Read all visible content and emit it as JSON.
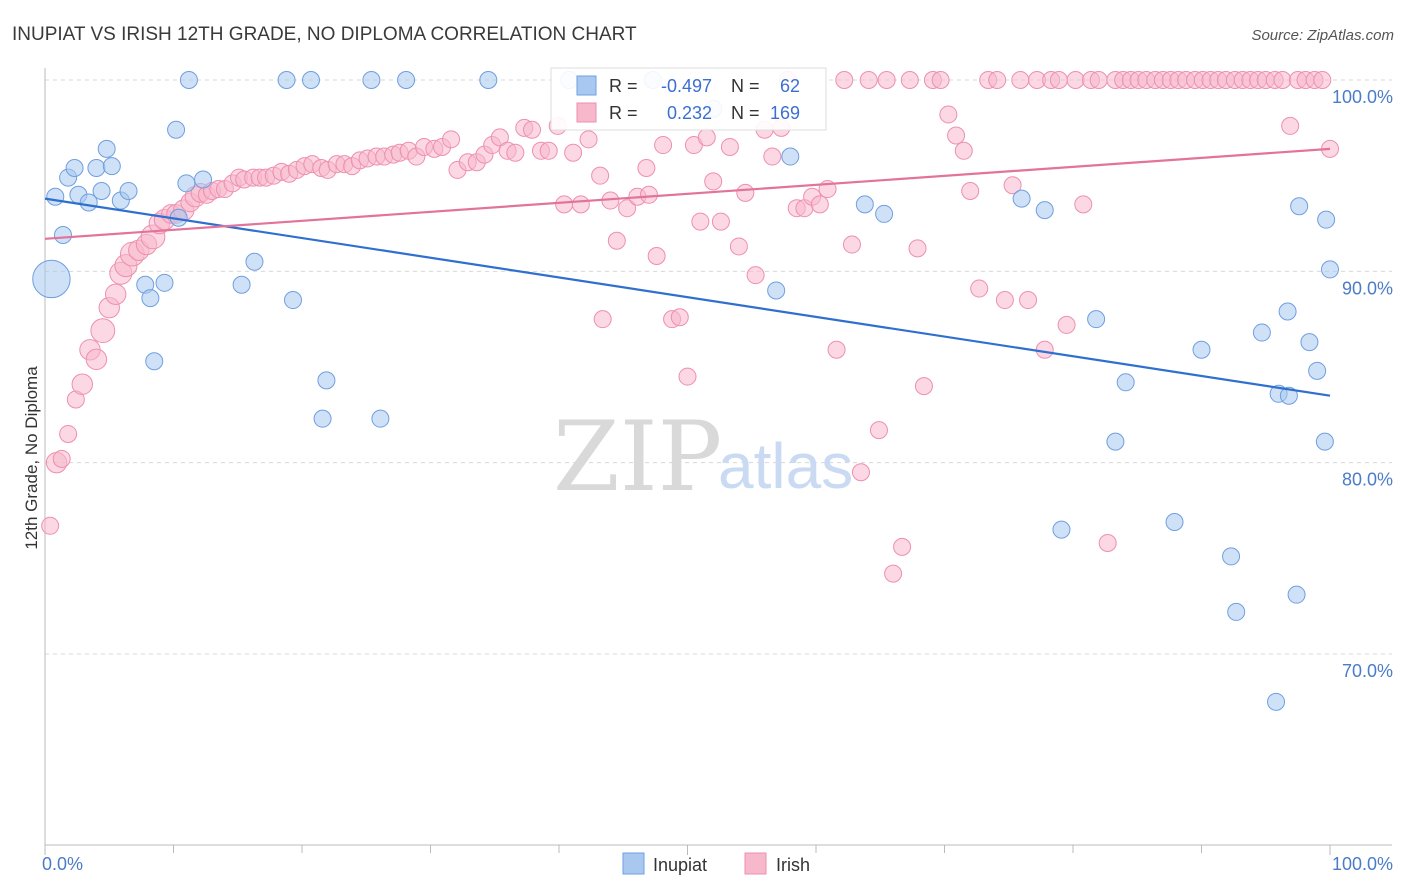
{
  "chart_data": {
    "type": "scatter",
    "title": "INUPIAT VS IRISH 12TH GRADE, NO DIPLOMA CORRELATION CHART",
    "source": "Source: ZipAtlas.com",
    "ylabel": "12th Grade, No Diploma",
    "xlim": [
      0,
      100
    ],
    "ylim": [
      60,
      104
    ],
    "x_tick_labels": [
      "0.0%",
      "100.0%"
    ],
    "y_ticks": [
      {
        "value": 100,
        "label": "100.0%"
      },
      {
        "value": 90,
        "label": "90.0%"
      },
      {
        "value": 80,
        "label": "80.0%"
      },
      {
        "value": 70,
        "label": "70.0%"
      }
    ],
    "grid": "horizontal-dashed",
    "legend": {
      "position": "bottom-center"
    },
    "stats_box": {
      "position": "top-center",
      "rows": [
        {
          "r_label": "R =",
          "r_value": "-0.497",
          "n_label": "N =",
          "n_value": "62"
        },
        {
          "r_label": "R =",
          "r_value": "0.232",
          "n_label": "N =",
          "n_value": "169"
        }
      ]
    },
    "watermark": {
      "part1": "ZIP",
      "part2": "atlas"
    },
    "series": [
      {
        "name": "Inupiat",
        "color": "#a8c8f0",
        "stroke": "#6f9fe0",
        "trend_color": "#2f6fd0",
        "trend": [
          [
            0,
            93.8
          ],
          [
            100,
            83.5
          ]
        ],
        "points": [
          [
            0.5,
            89.6,
            2.2
          ],
          [
            0.8,
            93.9,
            1
          ],
          [
            1.4,
            91.9,
            1
          ],
          [
            1.8,
            94.9,
            1
          ],
          [
            2.3,
            95.4,
            1
          ],
          [
            2.6,
            94.0,
            1
          ],
          [
            3.4,
            93.6,
            1
          ],
          [
            4.0,
            95.4,
            1
          ],
          [
            4.4,
            94.2,
            1
          ],
          [
            4.8,
            96.4,
            1
          ],
          [
            5.2,
            95.5,
            1
          ],
          [
            5.9,
            93.7,
            1
          ],
          [
            6.5,
            94.2,
            1
          ],
          [
            7.8,
            89.3,
            1
          ],
          [
            8.2,
            88.6,
            1
          ],
          [
            8.5,
            85.3,
            1
          ],
          [
            9.3,
            89.4,
            1
          ],
          [
            10.2,
            97.4,
            1
          ],
          [
            10.4,
            92.8,
            1
          ],
          [
            11.0,
            94.6,
            1
          ],
          [
            11.2,
            100,
            1
          ],
          [
            12.3,
            94.8,
            1
          ],
          [
            15.3,
            89.3,
            1
          ],
          [
            16.3,
            90.5,
            1
          ],
          [
            18.8,
            100,
            1
          ],
          [
            19.3,
            88.5,
            1
          ],
          [
            20.7,
            100,
            1
          ],
          [
            21.6,
            82.3,
            1
          ],
          [
            21.9,
            84.3,
            1
          ],
          [
            25.4,
            100,
            1
          ],
          [
            26.1,
            82.3,
            1
          ],
          [
            28.1,
            100,
            1
          ],
          [
            34.5,
            100,
            1
          ],
          [
            40.8,
            100,
            1
          ],
          [
            47.3,
            100,
            1
          ],
          [
            52.0,
            98.5,
            1
          ],
          [
            56.9,
            89.0,
            1
          ],
          [
            58.0,
            96.0,
            1
          ],
          [
            63.8,
            93.5,
            1
          ],
          [
            65.3,
            93.0,
            1
          ],
          [
            76.0,
            93.8,
            1
          ],
          [
            77.8,
            93.2,
            1
          ],
          [
            79.1,
            76.5,
            1
          ],
          [
            81.8,
            87.5,
            1
          ],
          [
            83.3,
            81.1,
            1
          ],
          [
            84.1,
            84.2,
            1
          ],
          [
            87.9,
            76.9,
            1
          ],
          [
            90.0,
            85.9,
            1
          ],
          [
            92.3,
            75.1,
            1
          ],
          [
            92.7,
            72.2,
            1
          ],
          [
            94.7,
            86.8,
            1
          ],
          [
            95.8,
            67.5,
            1
          ],
          [
            96.0,
            83.6,
            1
          ],
          [
            96.7,
            87.9,
            1
          ],
          [
            96.8,
            83.5,
            1
          ],
          [
            97.4,
            73.1,
            1
          ],
          [
            97.6,
            93.4,
            1
          ],
          [
            98.4,
            86.3,
            1
          ],
          [
            99.0,
            84.8,
            1
          ],
          [
            99.6,
            81.1,
            1
          ],
          [
            99.7,
            92.7,
            1
          ],
          [
            100.0,
            90.1,
            1
          ]
        ]
      },
      {
        "name": "Irish",
        "color": "#f7b8cc",
        "stroke": "#ee8fb0",
        "trend_color": "#e2739a",
        "trend": [
          [
            0,
            91.7
          ],
          [
            100,
            96.4
          ]
        ],
        "points": [
          [
            0.4,
            76.7,
            1
          ],
          [
            0.9,
            80.0,
            1.2
          ],
          [
            1.3,
            80.2,
            1
          ],
          [
            1.8,
            81.5,
            1
          ],
          [
            2.4,
            83.3,
            1
          ],
          [
            2.9,
            84.1,
            1.2
          ],
          [
            3.5,
            85.9,
            1.2
          ],
          [
            4.0,
            85.4,
            1.2
          ],
          [
            4.5,
            86.9,
            1.4
          ],
          [
            5.0,
            88.1,
            1.2
          ],
          [
            5.5,
            88.8,
            1.2
          ],
          [
            5.9,
            89.9,
            1.3
          ],
          [
            6.3,
            90.3,
            1.3
          ],
          [
            6.8,
            90.9,
            1.4
          ],
          [
            7.3,
            91.1,
            1.2
          ],
          [
            7.9,
            91.4,
            1.2
          ],
          [
            8.4,
            91.8,
            1.4
          ],
          [
            8.9,
            92.5,
            1.2
          ],
          [
            9.3,
            92.7,
            1.2
          ],
          [
            9.8,
            93.0,
            1.1
          ],
          [
            10.2,
            93.0,
            1.1
          ],
          [
            10.8,
            93.2,
            1.2
          ],
          [
            11.3,
            93.6,
            1.1
          ],
          [
            11.7,
            93.9,
            1.2
          ],
          [
            12.1,
            94.1,
            1.1
          ],
          [
            12.6,
            94.0,
            1
          ],
          [
            13.0,
            94.2,
            1
          ],
          [
            13.5,
            94.3,
            1
          ],
          [
            14.0,
            94.3,
            1
          ],
          [
            14.6,
            94.6,
            1
          ],
          [
            15.1,
            94.9,
            1
          ],
          [
            15.5,
            94.8,
            1
          ],
          [
            16.2,
            94.9,
            1
          ],
          [
            16.7,
            94.9,
            1
          ],
          [
            17.2,
            94.9,
            1
          ],
          [
            17.8,
            95.0,
            1
          ],
          [
            18.4,
            95.2,
            1
          ],
          [
            19.0,
            95.1,
            1
          ],
          [
            19.6,
            95.3,
            1
          ],
          [
            20.2,
            95.5,
            1
          ],
          [
            20.8,
            95.6,
            1
          ],
          [
            21.5,
            95.4,
            1
          ],
          [
            22.0,
            95.3,
            1
          ],
          [
            22.7,
            95.6,
            1
          ],
          [
            23.3,
            95.6,
            1
          ],
          [
            23.9,
            95.5,
            1
          ],
          [
            24.5,
            95.8,
            1
          ],
          [
            25.1,
            95.9,
            1
          ],
          [
            25.8,
            96.0,
            1
          ],
          [
            26.4,
            96.0,
            1
          ],
          [
            27.1,
            96.1,
            1
          ],
          [
            27.6,
            96.2,
            1
          ],
          [
            28.3,
            96.3,
            1
          ],
          [
            28.9,
            96.0,
            1
          ],
          [
            29.5,
            96.5,
            1
          ],
          [
            30.3,
            96.4,
            1
          ],
          [
            30.9,
            96.5,
            1
          ],
          [
            31.6,
            96.9,
            1
          ],
          [
            32.1,
            95.3,
            1
          ],
          [
            32.9,
            95.7,
            1
          ],
          [
            33.6,
            95.7,
            1
          ],
          [
            34.2,
            96.1,
            1
          ],
          [
            34.8,
            96.6,
            1
          ],
          [
            35.4,
            97.0,
            1
          ],
          [
            36.0,
            96.3,
            1
          ],
          [
            36.6,
            96.2,
            1
          ],
          [
            37.3,
            97.5,
            1
          ],
          [
            37.9,
            97.4,
            1
          ],
          [
            38.6,
            96.3,
            1
          ],
          [
            39.2,
            96.3,
            1
          ],
          [
            39.9,
            97.6,
            1
          ],
          [
            40.4,
            93.5,
            1
          ],
          [
            41.1,
            96.2,
            1
          ],
          [
            41.7,
            93.5,
            1
          ],
          [
            42.3,
            96.9,
            1
          ],
          [
            43.2,
            95.0,
            1
          ],
          [
            43.4,
            87.5,
            1
          ],
          [
            44.0,
            93.7,
            1
          ],
          [
            44.5,
            91.6,
            1
          ],
          [
            45.3,
            93.3,
            1
          ],
          [
            46.1,
            93.9,
            1
          ],
          [
            46.8,
            95.4,
            1
          ],
          [
            47.0,
            94.0,
            1
          ],
          [
            47.6,
            90.8,
            1
          ],
          [
            48.1,
            96.6,
            1
          ],
          [
            48.8,
            87.5,
            1
          ],
          [
            49.4,
            87.6,
            1
          ],
          [
            50.0,
            84.5,
            1
          ],
          [
            50.5,
            96.6,
            1
          ],
          [
            51.0,
            92.6,
            1
          ],
          [
            51.5,
            97.0,
            1
          ],
          [
            52.0,
            94.7,
            1
          ],
          [
            52.6,
            92.6,
            1
          ],
          [
            53.3,
            96.5,
            1
          ],
          [
            54.0,
            91.3,
            1
          ],
          [
            54.5,
            94.1,
            1
          ],
          [
            55.3,
            89.8,
            1
          ],
          [
            56.0,
            97.4,
            1
          ],
          [
            56.6,
            96.0,
            1
          ],
          [
            57.3,
            97.5,
            1
          ],
          [
            57.8,
            100,
            1
          ],
          [
            58.5,
            93.3,
            1
          ],
          [
            59.1,
            93.3,
            1
          ],
          [
            59.7,
            93.9,
            1
          ],
          [
            60.3,
            93.5,
            1
          ],
          [
            60.9,
            94.3,
            1
          ],
          [
            61.6,
            85.9,
            1
          ],
          [
            62.2,
            100,
            1
          ],
          [
            62.8,
            91.4,
            1
          ],
          [
            63.5,
            79.5,
            1
          ],
          [
            64.1,
            100,
            1
          ],
          [
            64.9,
            81.7,
            1
          ],
          [
            65.5,
            100,
            1
          ],
          [
            66.0,
            74.2,
            1
          ],
          [
            66.7,
            75.6,
            1
          ],
          [
            67.3,
            100,
            1
          ],
          [
            67.9,
            91.2,
            1
          ],
          [
            68.4,
            84.0,
            1
          ],
          [
            69.1,
            100,
            1
          ],
          [
            69.7,
            100,
            1
          ],
          [
            70.3,
            98.2,
            1
          ],
          [
            70.9,
            97.1,
            1
          ],
          [
            71.5,
            96.3,
            1
          ],
          [
            72.0,
            94.2,
            1
          ],
          [
            72.7,
            89.1,
            1
          ],
          [
            73.4,
            100,
            1
          ],
          [
            74.1,
            100,
            1
          ],
          [
            74.7,
            88.5,
            1
          ],
          [
            75.3,
            94.5,
            1
          ],
          [
            75.9,
            100,
            1
          ],
          [
            76.5,
            88.5,
            1
          ],
          [
            77.2,
            100,
            1
          ],
          [
            77.8,
            85.9,
            1
          ],
          [
            78.3,
            100,
            1
          ],
          [
            78.9,
            100,
            1
          ],
          [
            79.5,
            87.2,
            1
          ],
          [
            80.2,
            100,
            1
          ],
          [
            80.8,
            93.5,
            1
          ],
          [
            81.4,
            100,
            1
          ],
          [
            82.0,
            100,
            1
          ],
          [
            82.7,
            75.8,
            1
          ],
          [
            83.3,
            100,
            1
          ],
          [
            83.9,
            100,
            1
          ],
          [
            84.5,
            100,
            1
          ],
          [
            85.1,
            100,
            1
          ],
          [
            85.7,
            100,
            1
          ],
          [
            86.4,
            100,
            1
          ],
          [
            87.0,
            100,
            1
          ],
          [
            87.6,
            100,
            1
          ],
          [
            88.2,
            100,
            1
          ],
          [
            88.8,
            100,
            1
          ],
          [
            89.5,
            100,
            1
          ],
          [
            90.1,
            100,
            1
          ],
          [
            90.7,
            100,
            1
          ],
          [
            91.3,
            100,
            1
          ],
          [
            91.9,
            100,
            1
          ],
          [
            92.6,
            100,
            1
          ],
          [
            93.2,
            100,
            1
          ],
          [
            93.8,
            100,
            1
          ],
          [
            94.4,
            100,
            1
          ],
          [
            95.0,
            100,
            1
          ],
          [
            95.7,
            100,
            1
          ],
          [
            96.3,
            100,
            1
          ],
          [
            96.9,
            97.6,
            1
          ],
          [
            97.5,
            100,
            1
          ],
          [
            98.1,
            100,
            1
          ],
          [
            98.8,
            100,
            1
          ],
          [
            99.4,
            100,
            1
          ],
          [
            100.0,
            96.4,
            1
          ]
        ]
      }
    ]
  }
}
